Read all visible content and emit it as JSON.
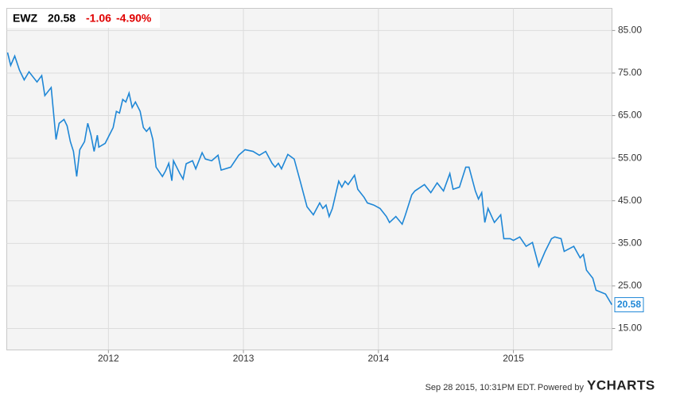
{
  "chart_data": {
    "type": "line",
    "price": "20.58",
    "change": "-1.06",
    "change_pct": "-4.90%",
    "timestamp": "Sep 28 2015, 10:31PM EDT.",
    "powered_by": "Powered by",
    "brand": "YCHARTS",
    "x": [
      2011.253,
      2011.276,
      2011.306,
      2011.341,
      2011.376,
      2011.412,
      2011.471,
      2011.506,
      2011.529,
      2011.576,
      2011.612,
      2011.635,
      2011.671,
      2011.694,
      2011.718,
      2011.741,
      2011.765,
      2011.788,
      2011.823,
      2011.847,
      2011.871,
      2011.894,
      2011.918,
      2011.929,
      2011.976,
      2012.035,
      2012.059,
      2012.082,
      2012.106,
      2012.129,
      2012.153,
      2012.176,
      2012.2,
      2012.235,
      2012.259,
      2012.282,
      2012.306,
      2012.329,
      2012.353,
      2012.4,
      2012.423,
      2012.447,
      2012.47,
      2012.482,
      2012.529,
      2012.553,
      2012.576,
      2012.623,
      2012.647,
      2012.694,
      2012.718,
      2012.765,
      2012.812,
      2012.835,
      2012.906,
      2012.965,
      2013.012,
      2013.071,
      2013.118,
      2013.165,
      2013.212,
      2013.235,
      2013.259,
      2013.282,
      2013.329,
      2013.376,
      2013.424,
      2013.471,
      2013.518,
      2013.565,
      2013.588,
      2013.612,
      2013.635,
      2013.659,
      2013.706,
      2013.729,
      2013.753,
      2013.776,
      2013.823,
      2013.847,
      2013.894,
      2013.918,
      2013.965,
      2014.012,
      2014.059,
      2014.082,
      2014.129,
      2014.176,
      2014.2,
      2014.247,
      2014.27,
      2014.341,
      2014.388,
      2014.435,
      2014.482,
      2014.529,
      2014.553,
      2014.6,
      2014.647,
      2014.671,
      2014.718,
      2014.741,
      2014.765,
      2014.788,
      2014.812,
      2014.859,
      2014.906,
      2014.929,
      2014.976,
      2015.0,
      2015.047,
      2015.094,
      2015.141,
      2015.188,
      2015.235,
      2015.282,
      2015.306,
      2015.353,
      2015.376,
      2015.447,
      2015.494,
      2015.518,
      2015.541,
      2015.588,
      2015.612,
      2015.682,
      2015.729
    ],
    "series": [
      {
        "name": "EWZ",
        "color": "#1f87d6",
        "values": [
          79.8,
          76.8,
          79.0,
          75.7,
          73.4,
          75.3,
          72.9,
          74.4,
          69.7,
          71.6,
          59.4,
          63.2,
          64.1,
          62.6,
          58.9,
          56.6,
          50.7,
          57.0,
          58.9,
          63.2,
          60.4,
          56.6,
          60.4,
          57.6,
          58.5,
          62.2,
          66.0,
          65.6,
          68.8,
          68.2,
          70.3,
          66.9,
          68.2,
          66.0,
          62.2,
          61.3,
          62.2,
          59.4,
          52.9,
          50.7,
          52.0,
          53.8,
          49.7,
          54.4,
          51.4,
          50.1,
          53.7,
          54.4,
          52.5,
          56.3,
          54.8,
          54.4,
          55.7,
          52.2,
          52.9,
          55.7,
          57.0,
          56.6,
          55.7,
          56.6,
          53.8,
          52.9,
          53.8,
          52.5,
          55.9,
          54.8,
          49.2,
          43.6,
          41.7,
          44.5,
          43.2,
          44.0,
          41.3,
          43.2,
          49.6,
          48.2,
          49.6,
          48.8,
          51.0,
          47.7,
          45.8,
          44.5,
          44.0,
          43.2,
          41.3,
          39.9,
          41.3,
          39.5,
          41.7,
          46.4,
          47.3,
          48.8,
          46.9,
          49.2,
          47.3,
          51.4,
          47.7,
          48.2,
          52.9,
          52.9,
          47.3,
          45.4,
          46.9,
          39.9,
          43.2,
          39.9,
          41.7,
          36.1,
          36.1,
          35.7,
          36.5,
          34.3,
          35.2,
          29.6,
          33.1,
          36.1,
          36.5,
          36.1,
          33.1,
          34.3,
          31.6,
          32.4,
          28.7,
          26.8,
          24.0,
          23.1,
          20.58
        ]
      }
    ],
    "xlim": [
      2011.247,
      2015.73
    ],
    "xticks": [
      2012,
      2013,
      2014,
      2015
    ],
    "ylim": [
      9.96,
      90.2
    ],
    "yticks": [
      {
        "value": 15,
        "label": "15.00"
      },
      {
        "value": 25,
        "label": "25.00"
      },
      {
        "value": 35,
        "label": "35.00"
      },
      {
        "value": 45,
        "label": "45.00"
      },
      {
        "value": 55,
        "label": "55.00"
      },
      {
        "value": 65,
        "label": "65.00"
      },
      {
        "value": 75,
        "label": "75.00"
      },
      {
        "value": 85,
        "label": "85.00"
      }
    ],
    "grid": true
  }
}
